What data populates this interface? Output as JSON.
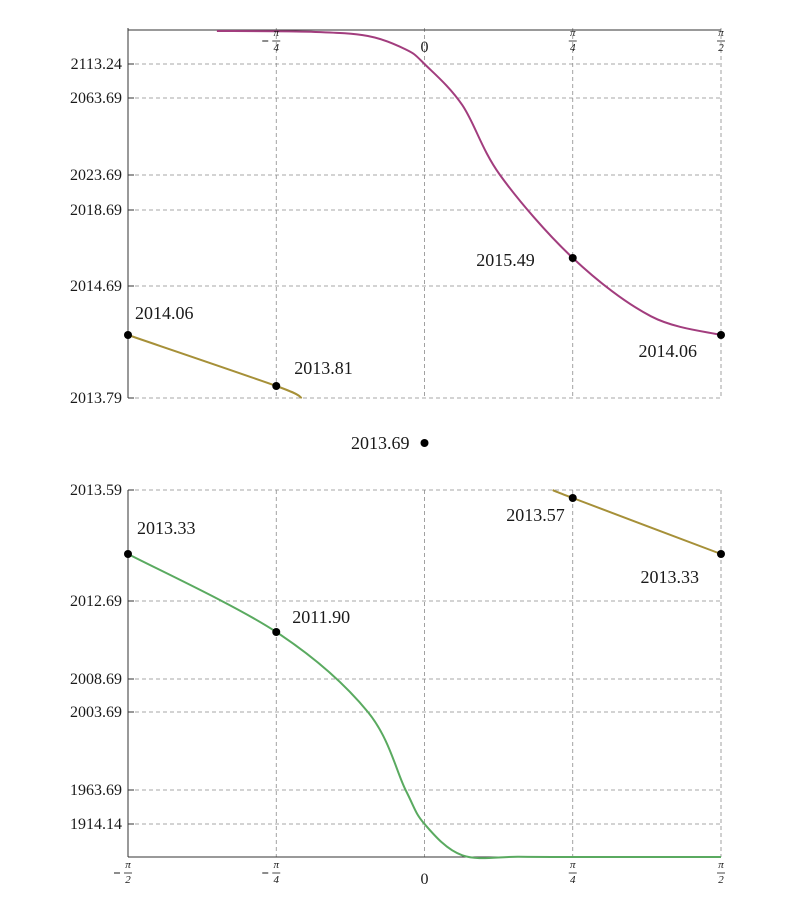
{
  "chart_data": [
    {
      "type": "line",
      "title": "",
      "xlabel": "",
      "ylabel": "",
      "x_ticks": [
        {
          "value": -0.7854,
          "label": "-π/4"
        },
        {
          "value": 0,
          "label": "0"
        },
        {
          "value": 0.7854,
          "label": "π/4"
        },
        {
          "value": 1.5708,
          "label": "π/2"
        }
      ],
      "y_ticks": [
        "2113.24",
        "2063.69",
        "2023.69",
        "2018.69",
        "2014.69",
        "2013.79"
      ],
      "grid": true,
      "series": [
        {
          "color": "#a23d7e",
          "x": [
            -1.1,
            -0.6,
            -0.3,
            -0.1,
            0,
            0.2,
            0.4,
            0.7854,
            1.2,
            1.5708
          ],
          "y": [
            2133,
            2132.5,
            2130,
            2122,
            2113.24,
            2060,
            2023.69,
            2015.49,
            2014.3,
            2014.06
          ]
        },
        {
          "color": "#a69038",
          "x": [
            -1.5708,
            -0.7854,
            -0.65
          ],
          "y": [
            2014.06,
            2013.81,
            2013.79
          ]
        }
      ],
      "points": [
        {
          "x": -1.5708,
          "y": 2014.06,
          "label": "2014.06"
        },
        {
          "x": -0.7854,
          "y": 2013.81,
          "label": "2013.81"
        },
        {
          "x": 0.7854,
          "y": 2015.49,
          "label": "2015.49"
        },
        {
          "x": 1.5708,
          "y": 2014.06,
          "label": "2014.06"
        }
      ]
    },
    {
      "type": "scatter",
      "points": [
        {
          "x": 0,
          "label": "2013.69"
        }
      ]
    },
    {
      "type": "line",
      "title": "",
      "xlabel": "",
      "ylabel": "",
      "x_ticks": [
        {
          "value": -1.5708,
          "label": "-π/2"
        },
        {
          "value": -0.7854,
          "label": "-π/4"
        },
        {
          "value": 0,
          "label": "0"
        },
        {
          "value": 0.7854,
          "label": "π/4"
        },
        {
          "value": 1.5708,
          "label": "π/2"
        }
      ],
      "y_ticks": [
        "2013.59",
        "2012.69",
        "2008.69",
        "2003.69",
        "1963.69",
        "1914.14"
      ],
      "grid": true,
      "series": [
        {
          "color": "#a69038",
          "x": [
            0.68,
            0.7854,
            1.5708
          ],
          "y": [
            2013.59,
            2013.57,
            2013.33
          ]
        },
        {
          "color": "#5aaa60",
          "x": [
            -1.5708,
            -0.7854,
            -0.3,
            -0.1,
            0,
            0.2,
            0.5,
            0.9,
            1.5708
          ],
          "y": [
            2013.33,
            2011.9,
            2003.69,
            1963.69,
            1914.14,
            1894,
            1893,
            1892.9,
            1892.9
          ]
        }
      ],
      "points": [
        {
          "x": -1.5708,
          "y": 2013.33,
          "label": "2013.33"
        },
        {
          "x": -0.7854,
          "y": 2011.9,
          "label": "2011.90"
        },
        {
          "x": 0.7854,
          "y": 2013.57,
          "label": "2013.57"
        },
        {
          "x": 1.5708,
          "y": 2013.33,
          "label": "2013.33"
        }
      ]
    }
  ]
}
